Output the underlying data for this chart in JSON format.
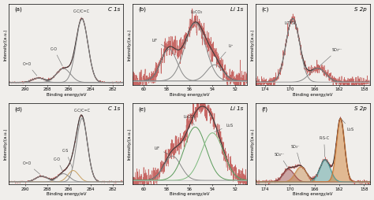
{
  "fig_width": 4.74,
  "fig_height": 2.54,
  "dpi": 100,
  "background": "#f0eeeb",
  "line_color_data": "#c0504d",
  "line_color_fit": "#3a3a3a",
  "line_color_component": "#888888",
  "line_color_bg": "#aaaaaa",
  "panels": [
    {
      "label": "(a)",
      "title": "C 1s",
      "xlim": [
        291.5,
        281.0
      ],
      "xticks": [
        290,
        288,
        286,
        284,
        282
      ]
    },
    {
      "label": "(b)",
      "title": "Li 1s",
      "xlim": [
        61.0,
        51.0
      ],
      "xticks": [
        60,
        58,
        56,
        54,
        52
      ]
    },
    {
      "label": "(c)",
      "title": "S 2p",
      "xlim": [
        175.5,
        157.0
      ],
      "xticks": [
        174,
        170,
        166,
        162,
        158
      ]
    },
    {
      "label": "(d)",
      "title": "C 1s",
      "xlim": [
        291.5,
        281.0
      ],
      "xticks": [
        290,
        288,
        286,
        284,
        282
      ]
    },
    {
      "label": "(e)",
      "title": "Li 1s",
      "xlim": [
        61.0,
        51.0
      ],
      "xticks": [
        60,
        58,
        56,
        54,
        52
      ]
    },
    {
      "label": "(f)",
      "title": "S 2p",
      "xlim": [
        175.5,
        157.0
      ],
      "xticks": [
        174,
        170,
        166,
        162,
        158
      ]
    }
  ]
}
